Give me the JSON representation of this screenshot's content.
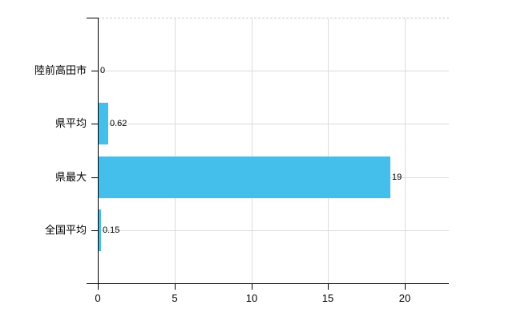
{
  "chart_data": {
    "type": "bar",
    "orientation": "horizontal",
    "title": "",
    "xlabel": "",
    "ylabel": "",
    "categories": [
      "陸前高田市",
      "県平均",
      "県最大",
      "全国平均"
    ],
    "values": [
      0,
      0.62,
      19,
      0.15
    ],
    "value_labels": [
      "0",
      "0.62",
      "19",
      "0.15"
    ],
    "x_ticks": [
      0,
      5,
      10,
      15,
      20
    ],
    "x_tick_labels": [
      "0",
      "5",
      "10",
      "15",
      "20"
    ],
    "xlim": [
      0,
      22.87
    ],
    "grid": true,
    "legend": false,
    "bar_color": "#44bfec",
    "grid_color": "#dddddd",
    "axis_color": "#000000",
    "background_color": "#ffffff",
    "plot_top_border_style": "dashed"
  }
}
